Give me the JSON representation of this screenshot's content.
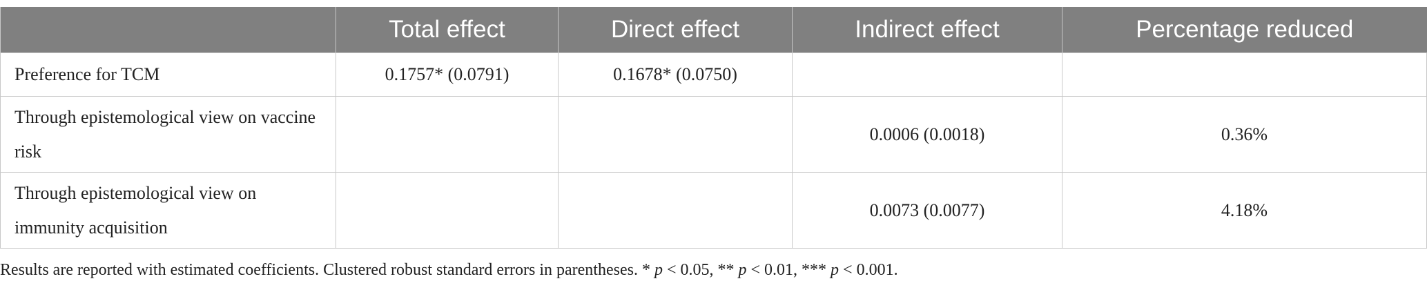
{
  "table": {
    "headers": {
      "total": "Total effect",
      "direct": "Direct effect",
      "indirect": "Indirect effect",
      "percentage": "Percentage reduced"
    },
    "rows": [
      {
        "label": "Preference for TCM",
        "total": "0.1757* (0.0791)",
        "direct": "0.1678* (0.0750)"
      },
      {
        "label": "Through epistemological view on vaccine risk",
        "indirect": "0.0006 (0.0018)",
        "percentage": "0.36%"
      },
      {
        "label": "Through epistemological view on immunity acquisition",
        "indirect": "0.0073 (0.0077)",
        "percentage": "4.18%"
      }
    ]
  },
  "footnote": [
    "Results are reported with estimated coefficients. Clustered robust standard errors in parentheses. * ",
    "p",
    " < 0.05, ** ",
    "p",
    " < 0.01, *** ",
    "p",
    " < 0.001."
  ]
}
